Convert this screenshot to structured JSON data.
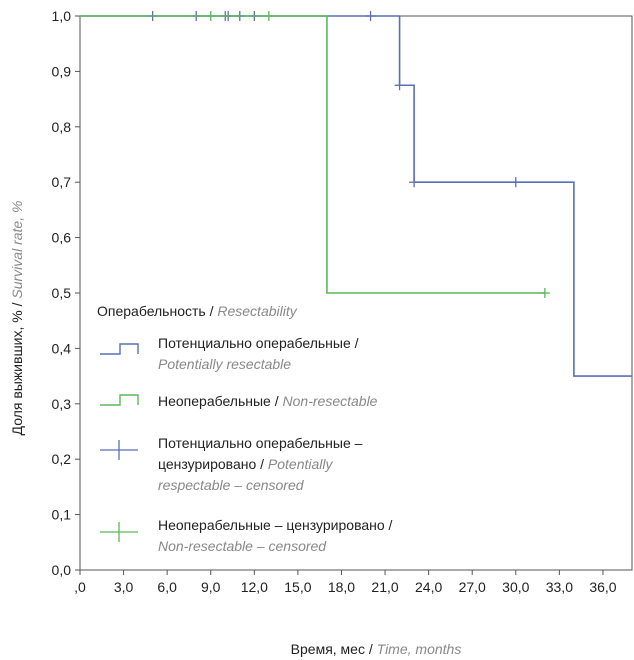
{
  "chart_data": {
    "type": "line",
    "subtype": "kaplan-meier step",
    "xlabel": "Время, мес",
    "xlabel_en": "Time, months",
    "ylabel": "Доля выживших, %",
    "ylabel_en": "Survival rate, %",
    "xlim": [
      0,
      38
    ],
    "ylim": [
      0,
      1
    ],
    "x_ticks": [
      0,
      3,
      6,
      9,
      12,
      15,
      18,
      21,
      24,
      27,
      30,
      33,
      36
    ],
    "x_tick_labels": [
      ",0",
      "3,0",
      "6,0",
      "9,0",
      "12,0",
      "15,0",
      "18,0",
      "21,0",
      "24,0",
      "27,0",
      "30,0",
      "33,0",
      "36,0"
    ],
    "y_ticks": [
      0,
      0.1,
      0.2,
      0.3,
      0.4,
      0.5,
      0.6,
      0.7,
      0.8,
      0.9,
      1.0
    ],
    "y_tick_labels": [
      "0,0",
      "0,1",
      "0,2",
      "0,3",
      "0,4",
      "0,5",
      "0,6",
      "0,7",
      "0,8",
      "0,9",
      "1,0"
    ],
    "grid": false,
    "legend_position": "bottom-left inside",
    "legend_title": "Операбельность",
    "legend_title_en": "Resectability",
    "series": [
      {
        "name": "Потенциально операбельные",
        "name_en": "Potentially resectable",
        "color": "#5a6fb8",
        "steps": [
          [
            0,
            1.0
          ],
          [
            22,
            0.875
          ],
          [
            23,
            0.7
          ],
          [
            34,
            0.35
          ],
          [
            38,
            0.35
          ]
        ],
        "censored": [
          [
            5,
            1.0
          ],
          [
            8,
            1.0
          ],
          [
            10,
            1.0
          ],
          [
            10.2,
            1.0
          ],
          [
            11,
            1.0
          ],
          [
            12,
            1.0
          ],
          [
            20,
            1.0
          ],
          [
            22,
            0.875
          ],
          [
            23,
            0.7
          ],
          [
            30,
            0.7
          ]
        ]
      },
      {
        "name": "Неоперабельные",
        "name_en": "Non-resectable",
        "color": "#5cb85c",
        "steps": [
          [
            0,
            1.0
          ],
          [
            17,
            0.5
          ],
          [
            32,
            0.5
          ]
        ],
        "censored": [
          [
            9,
            1.0
          ],
          [
            13,
            1.0
          ],
          [
            32,
            0.5
          ]
        ]
      }
    ],
    "legend": [
      {
        "kind": "step",
        "series": 0,
        "lines": [
          [
            "Потенциально операбельные / ",
            ""
          ],
          [
            "",
            "Potentially resectable"
          ]
        ]
      },
      {
        "kind": "step",
        "series": 1,
        "lines": [
          [
            "Неоперабельные / ",
            "Non-resectable"
          ]
        ]
      },
      {
        "kind": "cross",
        "series": 0,
        "lines": [
          [
            "Потенциально операбельные –",
            ""
          ],
          [
            "цензурировано / ",
            "Potentially"
          ],
          [
            "",
            "respectable – censored"
          ]
        ]
      },
      {
        "kind": "cross",
        "series": 1,
        "lines": [
          [
            "Неоперабельные – цензурировано /",
            ""
          ],
          [
            "",
            "Non-resectable – censored"
          ]
        ]
      }
    ]
  }
}
